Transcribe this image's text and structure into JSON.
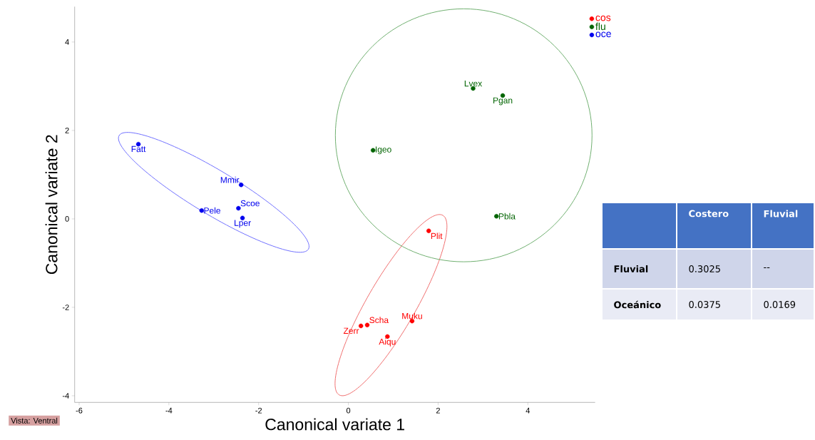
{
  "chart_data": [
    {
      "type": "scatter",
      "xlabel": "Canonical variate 1",
      "ylabel": "Canonical variate 2",
      "xlim": [
        -6.1,
        5.5
      ],
      "ylim": [
        -4.15,
        4.8
      ],
      "xticks": [
        -6,
        -4,
        -2,
        0,
        2,
        4
      ],
      "yticks": [
        -4,
        -2,
        0,
        2,
        4
      ],
      "legend": "top right",
      "series": [
        {
          "name": "cos",
          "color": "#ff0000",
          "x": [
            1.79,
            1.42,
            0.42,
            0.28,
            0.87
          ],
          "values": [
            -0.27,
            -2.31,
            -2.4,
            -2.42,
            -2.66
          ]
        },
        {
          "name": "flu",
          "color": "#006400",
          "x": [
            2.78,
            3.44,
            0.55,
            3.3
          ],
          "values": [
            2.95,
            2.79,
            1.55,
            0.06
          ]
        },
        {
          "name": "oce",
          "color": "#0000ee",
          "x": [
            -4.68,
            -2.39,
            -2.45,
            -3.27,
            -2.36
          ],
          "values": [
            1.69,
            0.77,
            0.24,
            0.19,
            0.02
          ]
        }
      ],
      "annotations": [
        {
          "text": "Fatt",
          "x": -4.68,
          "y": 1.69
        },
        {
          "text": "Mmir",
          "x": -2.39,
          "y": 0.77
        },
        {
          "text": "Scoe",
          "x": -2.45,
          "y": 0.24
        },
        {
          "text": "Pele",
          "x": -3.27,
          "y": 0.19
        },
        {
          "text": "Lper",
          "x": -2.36,
          "y": 0.02
        },
        {
          "text": "Lvex",
          "x": 2.78,
          "y": 2.95
        },
        {
          "text": "Pgan",
          "x": 3.44,
          "y": 2.79
        },
        {
          "text": "Igeo",
          "x": 0.55,
          "y": 1.55
        },
        {
          "text": "Pbla",
          "x": 3.3,
          "y": 0.06
        },
        {
          "text": "Plit",
          "x": 1.79,
          "y": -0.27
        },
        {
          "text": "Muku",
          "x": 1.42,
          "y": -2.31
        },
        {
          "text": "Scha",
          "x": 0.42,
          "y": -2.4
        },
        {
          "text": "Zerr",
          "x": 0.28,
          "y": -2.42
        },
        {
          "text": "Aiqu",
          "x": 0.87,
          "y": -2.66
        },
        "Vista: Ventral"
      ]
    },
    {
      "type": "other",
      "categories": [
        null,
        "Costero",
        "Fluvial"
      ],
      "y_categories": [
        "Fluvial",
        "Oceánico"
      ],
      "cell_labels": [
        [
          "0.3025",
          "--"
        ],
        [
          "0.0375",
          "0.0169"
        ]
      ]
    }
  ]
}
